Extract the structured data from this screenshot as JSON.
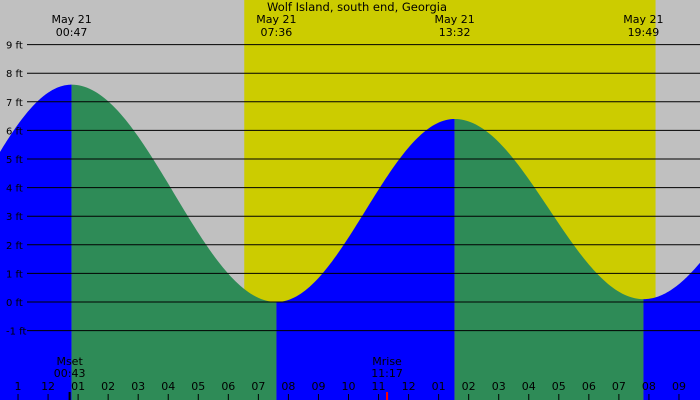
{
  "chart_data": {
    "type": "area",
    "title": "Wolf Island, south end, Georgia",
    "unit": "ft",
    "x_unit": "hours since midnight May 21 (local)",
    "ylim": [
      -2,
      9
    ],
    "y_ticks": [
      {
        "value": 9,
        "label": "9 ft"
      },
      {
        "value": 8,
        "label": "8 ft"
      },
      {
        "value": 7,
        "label": "7 ft"
      },
      {
        "value": 6,
        "label": "6 ft"
      },
      {
        "value": 5,
        "label": "5 ft"
      },
      {
        "value": 4,
        "label": "4 ft"
      },
      {
        "value": 3,
        "label": "3 ft"
      },
      {
        "value": 2,
        "label": "2 ft"
      },
      {
        "value": 1,
        "label": "1 ft"
      },
      {
        "value": 0,
        "label": "0 ft"
      },
      {
        "value": -1,
        "label": "-1 ft"
      }
    ],
    "x_ticks": [
      {
        "hour": -1,
        "label": "1"
      },
      {
        "hour": 0,
        "label": "12"
      },
      {
        "hour": 1,
        "label": "01"
      },
      {
        "hour": 2,
        "label": "02"
      },
      {
        "hour": 3,
        "label": "03"
      },
      {
        "hour": 4,
        "label": "04"
      },
      {
        "hour": 5,
        "label": "05"
      },
      {
        "hour": 6,
        "label": "06"
      },
      {
        "hour": 7,
        "label": "07"
      },
      {
        "hour": 8,
        "label": "08"
      },
      {
        "hour": 9,
        "label": "09"
      },
      {
        "hour": 10,
        "label": "10"
      },
      {
        "hour": 11,
        "label": "11"
      },
      {
        "hour": 12,
        "label": "12"
      },
      {
        "hour": 13,
        "label": "01"
      },
      {
        "hour": 14,
        "label": "02"
      },
      {
        "hour": 15,
        "label": "03"
      },
      {
        "hour": 16,
        "label": "04"
      },
      {
        "hour": 17,
        "label": "05"
      },
      {
        "hour": 18,
        "label": "06"
      },
      {
        "hour": 19,
        "label": "07"
      },
      {
        "hour": 20,
        "label": "08"
      },
      {
        "hour": 21,
        "label": "09"
      }
    ],
    "extremes": [
      {
        "type": "high",
        "date": "May 21",
        "time": "00:47",
        "hour": 0.783,
        "height": 7.6
      },
      {
        "type": "low",
        "date": "May 21",
        "time": "07:36",
        "hour": 7.6,
        "height": 0.0
      },
      {
        "type": "high",
        "date": "May 21",
        "time": "13:32",
        "hour": 13.533,
        "height": 6.4
      },
      {
        "type": "low",
        "date": "May 21",
        "time": "19:49",
        "hour": 19.817,
        "height": 0.1
      }
    ],
    "daylight": {
      "start_hour": 6.53,
      "end_hour": 20.22
    },
    "moon": [
      {
        "label": "Mset",
        "time": "00:43",
        "hour": 0.717
      },
      {
        "label": "Mrise",
        "time": "11:17",
        "hour": 11.283
      }
    ],
    "x_range": [
      -1.6,
      21.7
    ]
  },
  "colors": {
    "night": "#c0c0c0",
    "day": "#cccc00",
    "falling": "#2e8b57",
    "rising": "#0000ff",
    "gridline": "#000000",
    "moonset_marker": "#000000",
    "moonrise_marker": "#ff0000"
  }
}
